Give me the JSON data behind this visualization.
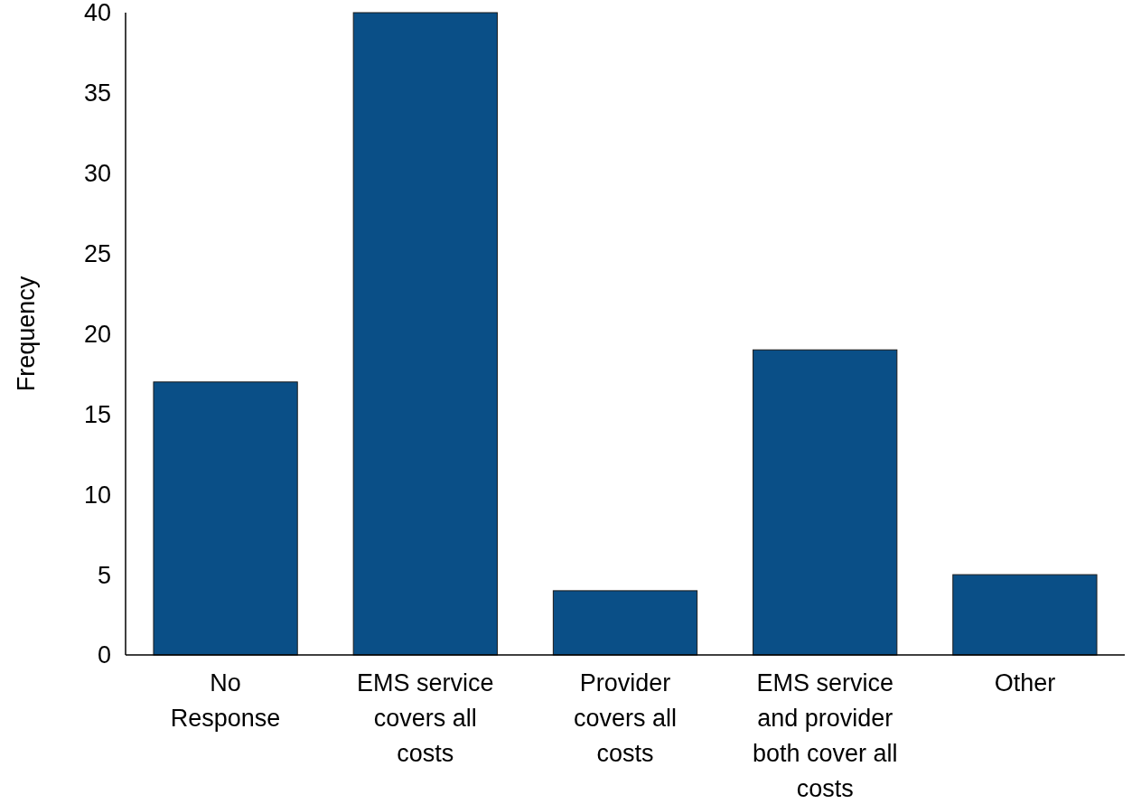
{
  "chart_data": {
    "type": "bar",
    "ylabel": "Frequency",
    "categories": [
      "No Response",
      "EMS service covers all costs",
      "Provider covers all costs",
      "EMS service and provider both cover all costs",
      "Other"
    ],
    "values": [
      17,
      40,
      4,
      19,
      5
    ],
    "color": "#0a4f87",
    "ylim": [
      0,
      40
    ],
    "yticks": [
      0,
      5,
      10,
      15,
      20,
      25,
      30,
      35,
      40
    ],
    "grid": false
  }
}
